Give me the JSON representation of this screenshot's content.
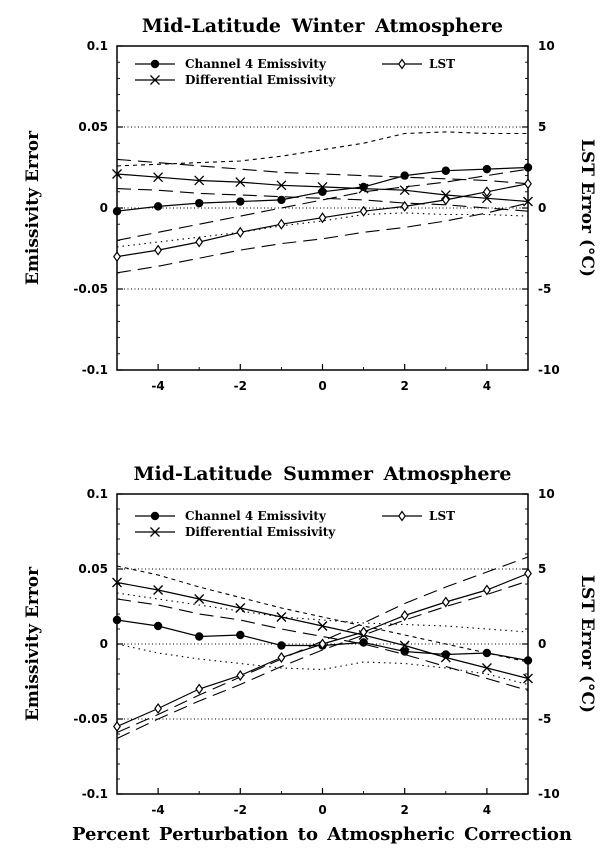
{
  "figure": {
    "xlabel": "Percent Perturbation to Atmospheric Correction"
  },
  "chart_data": [
    {
      "type": "line",
      "title": "Mid-Latitude Winter Atmosphere",
      "xlabel": "Percent Perturbation to Atmospheric Correction",
      "ylabel": "Emissivity Error",
      "y2label": "LST Error (°C)",
      "xlim": [
        -5,
        5
      ],
      "ylim": [
        -0.1,
        0.1
      ],
      "y2lim": [
        -10,
        10
      ],
      "x_ticks": [
        "-4",
        "-2",
        "0",
        "2",
        "4"
      ],
      "y_ticks": [
        "0.1",
        "0.05",
        "0",
        "-0.05",
        "-0.1"
      ],
      "y2_ticks": [
        "10",
        "5",
        "0",
        "-5",
        "-10"
      ],
      "grid": "dotted horizontal lines at 0.05, 0, -0.05",
      "legend": [
        "Channel 4 Emissivity",
        "Differential Emissivity",
        "LST"
      ],
      "x": [
        -5,
        -4,
        -3,
        -2,
        -1,
        0,
        1,
        2,
        3,
        4,
        5
      ],
      "series": [
        {
          "name": "Channel 4 Emissivity",
          "axis": "left",
          "marker": "filled-circle",
          "values": [
            -0.002,
            0.001,
            0.003,
            0.004,
            0.005,
            0.01,
            0.013,
            0.02,
            0.023,
            0.024,
            0.025
          ]
        },
        {
          "name": "Differential Emissivity",
          "axis": "left",
          "marker": "x",
          "values": [
            0.021,
            0.019,
            0.017,
            0.016,
            0.014,
            0.013,
            0.012,
            0.011,
            0.008,
            0.006,
            0.004
          ]
        },
        {
          "name": "LST",
          "axis": "right",
          "marker": "open-diamond",
          "values": [
            -3.0,
            -2.6,
            -2.1,
            -1.5,
            -1.0,
            -0.6,
            -0.2,
            0.1,
            0.5,
            1.0,
            1.5
          ]
        }
      ],
      "uncertainty_bounds": [
        {
          "style": "short-dash",
          "axis": "left",
          "values": [
            0.026,
            0.027,
            0.028,
            0.029,
            0.032,
            0.036,
            0.04,
            0.046,
            0.047,
            0.046,
            0.046
          ]
        },
        {
          "style": "dotted",
          "axis": "left",
          "values": [
            -0.024,
            -0.021,
            -0.018,
            -0.015,
            -0.011,
            -0.008,
            -0.004,
            -0.003,
            -0.004,
            -0.004,
            -0.005
          ]
        },
        {
          "style": "long-dash",
          "axis": "left",
          "values": [
            0.03,
            0.028,
            0.026,
            0.024,
            0.022,
            0.021,
            0.02,
            0.019,
            0.018,
            0.017,
            0.015
          ]
        },
        {
          "style": "long-dash",
          "axis": "left",
          "values": [
            0.012,
            0.011,
            0.009,
            0.008,
            0.007,
            0.006,
            0.005,
            0.003,
            0.002,
            0.0,
            -0.002
          ]
        },
        {
          "style": "long-dash",
          "axis": "right",
          "values": [
            -2.0,
            -1.5,
            -1.0,
            -0.5,
            0.0,
            0.5,
            1.0,
            1.3,
            1.6,
            2.0,
            2.4
          ]
        },
        {
          "style": "long-dash",
          "axis": "right",
          "values": [
            -4.0,
            -3.6,
            -3.1,
            -2.6,
            -2.2,
            -1.9,
            -1.5,
            -1.2,
            -0.8,
            -0.3,
            0.3
          ]
        }
      ]
    },
    {
      "type": "line",
      "title": "Mid-Latitude Summer Atmosphere",
      "xlabel": "Percent Perturbation to Atmospheric Correction",
      "ylabel": "Emissivity Error",
      "y2label": "LST Error (°C)",
      "xlim": [
        -5,
        5
      ],
      "ylim": [
        -0.1,
        0.1
      ],
      "y2lim": [
        -10,
        10
      ],
      "x_ticks": [
        "-4",
        "-2",
        "0",
        "2",
        "4"
      ],
      "y_ticks": [
        "0.1",
        "0.05",
        "0",
        "-0.05",
        "-0.1"
      ],
      "y2_ticks": [
        "10",
        "5",
        "0",
        "-5",
        "-10"
      ],
      "grid": "dotted horizontal lines at 0.05, 0, -0.05",
      "legend": [
        "Channel 4 Emissivity",
        "Differential Emissivity",
        "LST"
      ],
      "x": [
        -5,
        -4,
        -3,
        -2,
        -1,
        0,
        1,
        2,
        3,
        4,
        5
      ],
      "series": [
        {
          "name": "Channel 4 Emissivity",
          "axis": "left",
          "marker": "filled-circle",
          "values": [
            0.016,
            0.012,
            0.005,
            0.006,
            -0.001,
            -0.001,
            0.001,
            -0.005,
            -0.007,
            -0.006,
            -0.011
          ]
        },
        {
          "name": "Differential Emissivity",
          "axis": "left",
          "marker": "x",
          "values": [
            0.041,
            0.036,
            0.03,
            0.024,
            0.018,
            0.012,
            0.006,
            -0.001,
            -0.009,
            -0.016,
            -0.023
          ]
        },
        {
          "name": "LST",
          "axis": "right",
          "marker": "open-diamond",
          "values": [
            -5.5,
            -4.3,
            -3.0,
            -2.1,
            -0.9,
            0.0,
            0.8,
            1.9,
            2.8,
            3.6,
            4.7
          ]
        }
      ],
      "uncertainty_bounds": [
        {
          "style": "short-dash",
          "axis": "left",
          "values": [
            0.052,
            0.046,
            0.038,
            0.031,
            0.024,
            0.018,
            0.012,
            0.006,
            0.0,
            -0.006,
            -0.012
          ]
        },
        {
          "style": "long-dash",
          "axis": "left",
          "values": [
            0.03,
            0.026,
            0.02,
            0.016,
            0.01,
            0.005,
            0.0,
            -0.007,
            -0.015,
            -0.023,
            -0.031
          ]
        },
        {
          "style": "dotted",
          "axis": "left",
          "values": [
            0.034,
            0.03,
            0.026,
            0.022,
            0.018,
            0.016,
            0.014,
            0.013,
            0.012,
            0.01,
            0.008
          ]
        },
        {
          "style": "dotted",
          "axis": "left",
          "values": [
            0.0,
            -0.006,
            -0.01,
            -0.013,
            -0.016,
            -0.017,
            -0.012,
            -0.013,
            -0.016,
            -0.02,
            -0.027
          ]
        },
        {
          "style": "long-dash",
          "axis": "right",
          "values": [
            -5.9,
            -4.7,
            -3.4,
            -2.2,
            -1.0,
            0.2,
            1.4,
            2.7,
            3.8,
            4.8,
            5.8
          ]
        },
        {
          "style": "long-dash",
          "axis": "right",
          "values": [
            -6.3,
            -5.0,
            -3.8,
            -2.7,
            -1.5,
            -0.4,
            0.6,
            1.6,
            2.5,
            3.3,
            4.2
          ]
        }
      ]
    }
  ]
}
